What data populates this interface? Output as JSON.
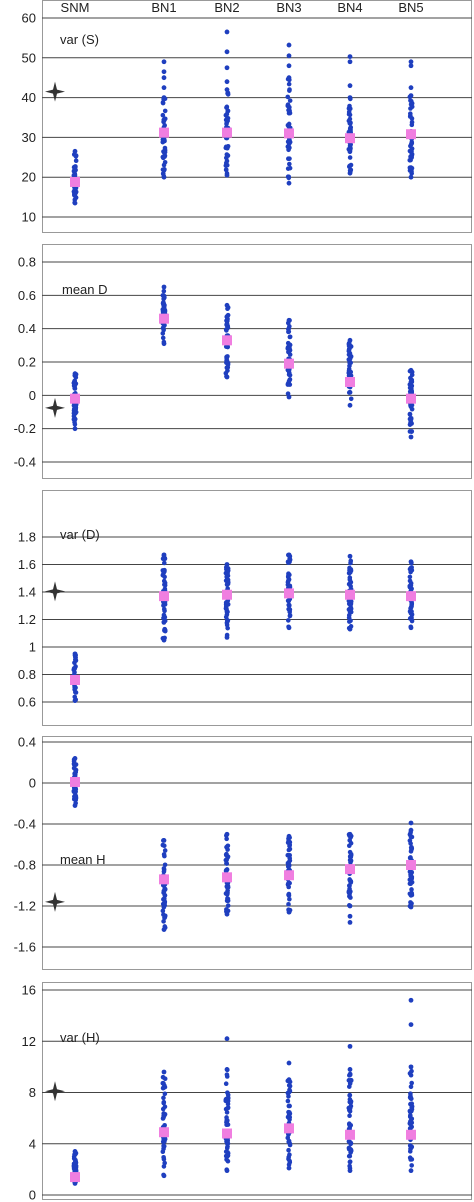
{
  "chart_data": [
    {
      "type": "scatter",
      "label": "var (S)",
      "categories": [
        "SNM",
        "BN1",
        "BN2",
        "BN3",
        "BN4",
        "BN5"
      ],
      "ylim": [
        10,
        60
      ],
      "yticks": [
        10,
        20,
        30,
        40,
        50,
        60
      ],
      "ytick_labels": [
        "10",
        "20",
        "30",
        "40",
        "50",
        "60"
      ],
      "grid": true,
      "observed": 41.5,
      "series": [
        {
          "category": "SNM",
          "min": 13.5,
          "max": 26.5,
          "mean": 18.8,
          "outliers": []
        },
        {
          "category": "BN1",
          "min": 20,
          "max": 40,
          "mean": 31.2,
          "outliers": [
            42.5,
            45,
            46.5,
            49
          ]
        },
        {
          "category": "BN2",
          "min": 20.5,
          "max": 42,
          "mean": 31.2,
          "outliers": [
            44,
            47.5,
            51.5,
            56.5
          ]
        },
        {
          "category": "BN3",
          "min": 18.5,
          "max": 45,
          "mean": 31,
          "outliers": [
            48,
            50.5,
            53.2
          ]
        },
        {
          "category": "BN4",
          "min": 21,
          "max": 40,
          "mean": 29.8,
          "outliers": [
            43,
            49,
            50.3
          ]
        },
        {
          "category": "BN5",
          "min": 20,
          "max": 40.5,
          "mean": 30.8,
          "outliers": [
            42.5,
            48,
            49
          ]
        }
      ]
    },
    {
      "type": "scatter",
      "label": "mean D",
      "categories": [
        "SNM",
        "BN1",
        "BN2",
        "BN3",
        "BN4",
        "BN5"
      ],
      "ylim": [
        -0.4,
        0.8
      ],
      "yticks": [
        -0.4,
        -0.2,
        0,
        0.2,
        0.4,
        0.6,
        0.8
      ],
      "ytick_labels": [
        "-0.4",
        "-0.2",
        "0",
        "0.2",
        "0.4",
        "0.6",
        "0.8"
      ],
      "grid": true,
      "observed": -0.075,
      "series": [
        {
          "category": "SNM",
          "min": -0.2,
          "max": 0.13,
          "mean": -0.02,
          "outliers": []
        },
        {
          "category": "BN1",
          "min": 0.31,
          "max": 0.65,
          "mean": 0.46,
          "outliers": []
        },
        {
          "category": "BN2",
          "min": 0.11,
          "max": 0.54,
          "mean": 0.33,
          "outliers": []
        },
        {
          "category": "BN3",
          "min": -0.01,
          "max": 0.45,
          "mean": 0.19,
          "outliers": []
        },
        {
          "category": "BN4",
          "min": -0.06,
          "max": 0.33,
          "mean": 0.08,
          "outliers": []
        },
        {
          "category": "BN5",
          "min": -0.25,
          "max": 0.15,
          "mean": -0.02,
          "outliers": []
        }
      ]
    },
    {
      "type": "scatter",
      "label": "var (D)",
      "categories": [
        "SNM",
        "BN1",
        "BN2",
        "BN3",
        "BN4",
        "BN5"
      ],
      "ylim": [
        0.6,
        1.8
      ],
      "yticks": [
        0.6,
        0.8,
        1,
        1.2,
        1.4,
        1.6,
        1.8
      ],
      "ytick_labels": [
        "0.6",
        "0.8",
        "1",
        "1.2",
        "1.4",
        "1.6",
        "1.8"
      ],
      "grid": true,
      "observed": 1.405,
      "series": [
        {
          "category": "SNM",
          "min": 0.61,
          "max": 0.95,
          "mean": 0.76,
          "outliers": []
        },
        {
          "category": "BN1",
          "min": 1.05,
          "max": 1.67,
          "mean": 1.37,
          "outliers": []
        },
        {
          "category": "BN2",
          "min": 1.07,
          "max": 1.6,
          "mean": 1.38,
          "outliers": []
        },
        {
          "category": "BN3",
          "min": 1.14,
          "max": 1.67,
          "mean": 1.39,
          "outliers": []
        },
        {
          "category": "BN4",
          "min": 1.13,
          "max": 1.66,
          "mean": 1.38,
          "outliers": []
        },
        {
          "category": "BN5",
          "min": 1.14,
          "max": 1.62,
          "mean": 1.37,
          "outliers": []
        }
      ]
    },
    {
      "type": "scatter",
      "label": "mean H",
      "categories": [
        "SNM",
        "BN1",
        "BN2",
        "BN3",
        "BN4",
        "BN5"
      ],
      "ylim": [
        -1.6,
        0.4
      ],
      "yticks": [
        -1.6,
        -1.2,
        -0.8,
        -0.4,
        0,
        0.4
      ],
      "ytick_labels": [
        "-1.6",
        "-1.2",
        "-0.8",
        "-0.4",
        "0",
        "0.4"
      ],
      "grid": true,
      "observed": -1.16,
      "series": [
        {
          "category": "SNM",
          "min": -0.22,
          "max": 0.24,
          "mean": 0.01,
          "outliers": []
        },
        {
          "category": "BN1",
          "min": -1.43,
          "max": -0.56,
          "mean": -0.94,
          "outliers": []
        },
        {
          "category": "BN2",
          "min": -1.28,
          "max": -0.5,
          "mean": -0.92,
          "outliers": []
        },
        {
          "category": "BN3",
          "min": -1.26,
          "max": -0.52,
          "mean": -0.9,
          "outliers": []
        },
        {
          "category": "BN4",
          "min": -1.2,
          "max": -0.5,
          "mean": -0.84,
          "outliers": [
            -1.3,
            -1.36
          ]
        },
        {
          "category": "BN5",
          "min": -1.21,
          "max": -0.46,
          "mean": -0.8,
          "outliers": [
            -0.39
          ]
        }
      ]
    },
    {
      "type": "scatter",
      "label": "var (H)",
      "categories": [
        "SNM",
        "BN1",
        "BN2",
        "BN3",
        "BN4",
        "BN5"
      ],
      "ylim": [
        0,
        16
      ],
      "yticks": [
        0,
        4,
        8,
        12,
        16
      ],
      "ytick_labels": [
        "0",
        "4",
        "8",
        "12",
        "16"
      ],
      "grid": true,
      "observed": 8.1,
      "series": [
        {
          "category": "SNM",
          "min": 0.9,
          "max": 3.4,
          "mean": 1.4,
          "outliers": []
        },
        {
          "category": "BN1",
          "min": 1.5,
          "max": 9.6,
          "mean": 4.9,
          "outliers": []
        },
        {
          "category": "BN2",
          "min": 1.9,
          "max": 9.8,
          "mean": 4.8,
          "outliers": [
            12.2
          ]
        },
        {
          "category": "BN3",
          "min": 2.1,
          "max": 9,
          "mean": 5.2,
          "outliers": [
            10.3
          ]
        },
        {
          "category": "BN4",
          "min": 1.9,
          "max": 9.8,
          "mean": 4.7,
          "outliers": [
            11.6
          ]
        },
        {
          "category": "BN5",
          "min": 1.9,
          "max": 10,
          "mean": 4.7,
          "outliers": [
            13.3,
            15.2
          ]
        }
      ]
    }
  ],
  "colors": {
    "points": "#1f3fbf",
    "mean_marker": "#f07ee0",
    "observed_marker": "#333333",
    "grid": "#444444",
    "frame": "#999999"
  }
}
